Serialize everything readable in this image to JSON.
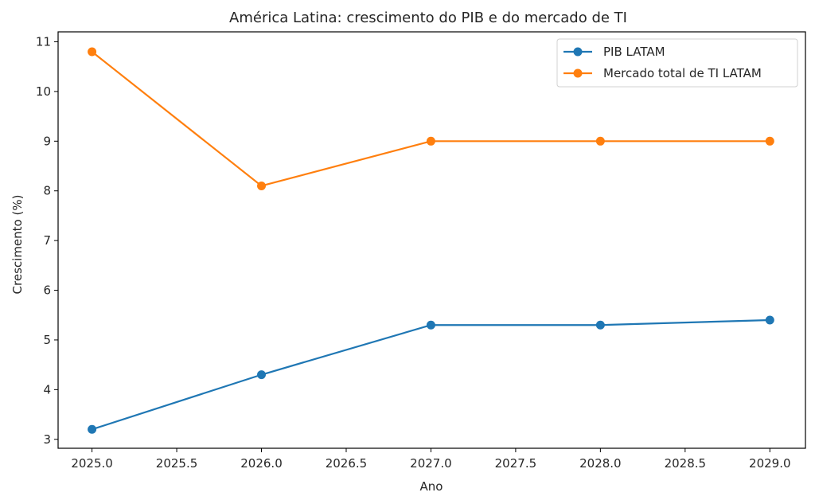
{
  "chart_data": {
    "type": "line",
    "title": "América Latina: crescimento do PIB e do mercado de TI",
    "xlabel": "Ano",
    "ylabel": "Crescimento (%)",
    "x": [
      2025,
      2026,
      2027,
      2028,
      2029
    ],
    "xlim": [
      2024.8,
      2029.21
    ],
    "ylim": [
      2.82,
      11.2
    ],
    "xticks": [
      2025.0,
      2025.5,
      2026.0,
      2026.5,
      2027.0,
      2027.5,
      2028.0,
      2028.5,
      2029.0
    ],
    "xtick_labels": [
      "2025.0",
      "2025.5",
      "2026.0",
      "2026.5",
      "2027.0",
      "2027.5",
      "2028.0",
      "2028.5",
      "2029.0"
    ],
    "yticks": [
      3,
      4,
      5,
      6,
      7,
      8,
      9,
      10,
      11
    ],
    "ytick_labels": [
      "3",
      "4",
      "5",
      "6",
      "7",
      "8",
      "9",
      "10",
      "11"
    ],
    "grid": false,
    "legend_position": "top-right",
    "series": [
      {
        "name": "PIB LATAM",
        "color": "#1f77b4",
        "marker": "circle",
        "values": [
          3.2,
          4.3,
          5.3,
          5.3,
          5.4
        ]
      },
      {
        "name": "Mercado total de TI LATAM",
        "color": "#ff7f0e",
        "marker": "circle",
        "values": [
          10.8,
          8.1,
          9.0,
          9.0,
          9.0
        ]
      }
    ]
  }
}
